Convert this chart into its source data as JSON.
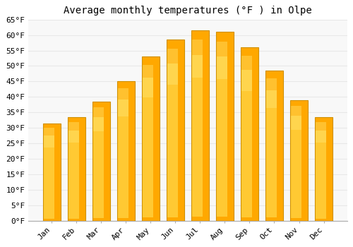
{
  "title": "Average monthly temperatures (°F ) in Olpe",
  "months": [
    "Jan",
    "Feb",
    "Mar",
    "Apr",
    "May",
    "Jun",
    "Jul",
    "Aug",
    "Sep",
    "Oct",
    "Nov",
    "Dec"
  ],
  "values": [
    31.5,
    33.5,
    38.5,
    45.0,
    53.0,
    58.5,
    61.5,
    61.0,
    56.0,
    48.5,
    39.0,
    33.5
  ],
  "bar_color_light": "#FFD84A",
  "bar_color_main": "#FFA800",
  "bar_color_dark": "#E89000",
  "bar_edge_color": "#D09000",
  "background_color": "#FFFFFF",
  "plot_bg_color": "#F8F8F8",
  "ylim": [
    0,
    65
  ],
  "yticks": [
    0,
    5,
    10,
    15,
    20,
    25,
    30,
    35,
    40,
    45,
    50,
    55,
    60,
    65
  ],
  "ytick_labels": [
    "0°F",
    "5°F",
    "10°F",
    "15°F",
    "20°F",
    "25°F",
    "30°F",
    "35°F",
    "40°F",
    "45°F",
    "50°F",
    "55°F",
    "60°F",
    "65°F"
  ],
  "grid_color": "#E8E8E8",
  "title_fontsize": 10,
  "tick_fontsize": 8
}
